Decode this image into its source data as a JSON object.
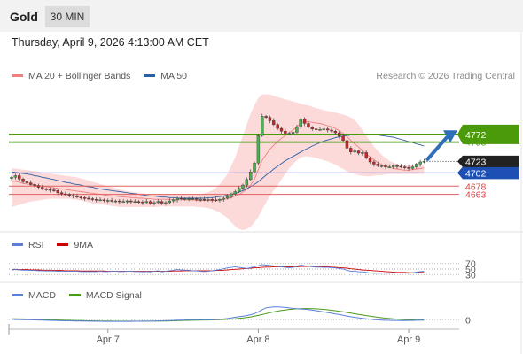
{
  "header": {
    "symbol": "Gold",
    "timeframe": "30 MIN"
  },
  "datetime": "Thursday, April 9, 2026 4:13:00 AM CET",
  "copyright": "Research © 2026 Trading Central",
  "legend": {
    "main": [
      {
        "label": "MA 20 + Bollinger Bands",
        "color": "#f08080"
      },
      {
        "label": "MA 50",
        "color": "#2e5fa3"
      }
    ],
    "rsi": [
      {
        "label": "RSI",
        "color": "#5b7fd8"
      },
      {
        "label": "9MA",
        "color": "#cc0000"
      }
    ],
    "macd": [
      {
        "label": "MACD",
        "color": "#5b7fd8"
      },
      {
        "label": "MACD Signal",
        "color": "#4a9a1a"
      }
    ]
  },
  "colors": {
    "up": "#4caf50",
    "down": "#c62828",
    "resistance": "#4a9a0a",
    "support_blue": "#1e50b4",
    "support_red": "#e06060",
    "band_fill": "#fbd3d3",
    "last_price_bg": "#222222",
    "arrow": "#2e6fb8"
  },
  "chart_data": [
    {
      "type": "candlestick",
      "ylim": [
        4598,
        4862
      ],
      "x_labels": [
        "Apr 7",
        "Apr 8",
        "Apr 9"
      ],
      "levels": [
        {
          "value": 4772,
          "label": "4772",
          "kind": "resistance"
        },
        {
          "value": 4758,
          "label": "4758",
          "kind": "resistance"
        },
        {
          "value": 4702,
          "label": "4702",
          "kind": "support_blue"
        },
        {
          "value": 4678,
          "label": "4678",
          "kind": "support_red"
        },
        {
          "value": 4663,
          "label": "4663",
          "kind": "support_red"
        }
      ],
      "last_price": {
        "value": 4723,
        "label": "4723"
      },
      "forecast_arrow": {
        "from": 4727,
        "to": 4773
      },
      "close": [
        4694,
        4697,
        4691,
        4686,
        4684,
        4681,
        4679,
        4676,
        4673,
        4672,
        4671,
        4670,
        4666,
        4664,
        4663,
        4661,
        4660,
        4658,
        4657,
        4656,
        4655,
        4654,
        4653,
        4653,
        4652,
        4652,
        4651,
        4651,
        4650,
        4650,
        4651,
        4650,
        4650,
        4649,
        4648,
        4650,
        4647,
        4648,
        4650,
        4647,
        4648,
        4651,
        4653,
        4656,
        4655,
        4655,
        4655,
        4655,
        4654,
        4654,
        4653,
        4654,
        4653,
        4652,
        4654,
        4656,
        4659,
        4664,
        4668,
        4674,
        4680,
        4690,
        4704,
        4720,
        4770,
        4805,
        4803,
        4797,
        4790,
        4783,
        4778,
        4774,
        4774,
        4776,
        4785,
        4800,
        4792,
        4785,
        4782,
        4781,
        4781,
        4782,
        4780,
        4778,
        4775,
        4769,
        4761,
        4747,
        4740,
        4742,
        4738,
        4739,
        4729,
        4722,
        4718,
        4715,
        4715,
        4713,
        4713,
        4715,
        4714,
        4713,
        4712,
        4710,
        4713,
        4718,
        4722,
        4723
      ],
      "ma20": [
        4686,
        4687,
        4685,
        4683,
        4682,
        4681,
        4680,
        4679,
        4678,
        4677,
        4676,
        4675,
        4674,
        4673,
        4672,
        4671,
        4670,
        4669,
        4668,
        4667,
        4666,
        4665,
        4664,
        4663,
        4662,
        4661,
        4660,
        4660,
        4659,
        4658,
        4658,
        4657,
        4657,
        4656,
        4656,
        4655,
        4655,
        4654,
        4654,
        4654,
        4654,
        4654,
        4653,
        4653,
        4653,
        4653,
        4653,
        4653,
        4652,
        4652,
        4652,
        4652,
        4652,
        4652,
        4653,
        4654,
        4655,
        4657,
        4660,
        4663,
        4667,
        4672,
        4680,
        4690,
        4708,
        4725,
        4735,
        4745,
        4752,
        4759,
        4765,
        4770,
        4775,
        4780,
        4786,
        4793,
        4795,
        4795,
        4794,
        4793,
        4792,
        4790,
        4788,
        4786,
        4783,
        4779,
        4774,
        4768,
        4761,
        4755,
        4749,
        4743,
        4737,
        4731,
        4726,
        4721,
        4717,
        4714,
        4712,
        4710,
        4709,
        4708,
        4707,
        4707,
        4708,
        4709,
        4710,
        4711
      ],
      "ma50": [
        4704,
        4703,
        4702,
        4701,
        4700,
        4699,
        4697,
        4696,
        4694,
        4693,
        4691,
        4690,
        4688,
        4687,
        4685,
        4684,
        4682,
        4681,
        4680,
        4678,
        4677,
        4676,
        4674,
        4673,
        4672,
        4671,
        4670,
        4669,
        4668,
        4667,
        4666,
        4665,
        4664,
        4663,
        4662,
        4661,
        4660,
        4660,
        4659,
        4658,
        4658,
        4657,
        4657,
        4656,
        4656,
        4656,
        4656,
        4656,
        4656,
        4656,
        4656,
        4657,
        4657,
        4658,
        4659,
        4660,
        4662,
        4663,
        4665,
        4667,
        4670,
        4673,
        4677,
        4681,
        4686,
        4692,
        4698,
        4703,
        4709,
        4714,
        4719,
        4724,
        4728,
        4732,
        4736,
        4740,
        4744,
        4747,
        4751,
        4754,
        4757,
        4760,
        4762,
        4764,
        4766,
        4768,
        4769,
        4770,
        4771,
        4771,
        4772,
        4772,
        4772,
        4772,
        4771,
        4771,
        4770,
        4769,
        4768,
        4767,
        4765,
        4763,
        4761,
        4759,
        4757,
        4755,
        4753,
        4751
      ],
      "bb_upper": [
        4710,
        4710,
        4709,
        4708,
        4707,
        4706,
        4705,
        4704,
        4703,
        4702,
        4701,
        4700,
        4699,
        4698,
        4697,
        4696,
        4695,
        4694,
        4692,
        4690,
        4688,
        4686,
        4684,
        4682,
        4680,
        4678,
        4676,
        4674,
        4672,
        4670,
        4669,
        4668,
        4667,
        4666,
        4665,
        4664,
        4664,
        4663,
        4663,
        4663,
        4663,
        4663,
        4663,
        4663,
        4663,
        4663,
        4663,
        4663,
        4663,
        4664,
        4665,
        4667,
        4670,
        4675,
        4681,
        4690,
        4700,
        4715,
        4730,
        4750,
        4770,
        4790,
        4810,
        4825,
        4838,
        4845,
        4845,
        4845,
        4842,
        4840,
        4838,
        4836,
        4834,
        4832,
        4830,
        4828,
        4826,
        4825,
        4822,
        4820,
        4818,
        4816,
        4815,
        4813,
        4812,
        4810,
        4808,
        4806,
        4803,
        4798,
        4790,
        4780,
        4770,
        4760,
        4750,
        4742,
        4735,
        4729,
        4724,
        4721,
        4718,
        4716,
        4716,
        4716,
        4716,
        4716,
        4716,
        4716
      ],
      "bb_lower": [
        4640,
        4642,
        4644,
        4646,
        4648,
        4650,
        4651,
        4652,
        4653,
        4654,
        4655,
        4655,
        4655,
        4655,
        4655,
        4655,
        4654,
        4653,
        4652,
        4650,
        4648,
        4647,
        4646,
        4645,
        4644,
        4643,
        4642,
        4641,
        4640,
        4640,
        4640,
        4640,
        4640,
        4640,
        4640,
        4640,
        4640,
        4640,
        4640,
        4641,
        4641,
        4641,
        4641,
        4641,
        4641,
        4641,
        4641,
        4641,
        4640,
        4640,
        4639,
        4638,
        4636,
        4633,
        4630,
        4625,
        4620,
        4612,
        4605,
        4600,
        4598,
        4600,
        4604,
        4612,
        4622,
        4635,
        4648,
        4660,
        4670,
        4680,
        4690,
        4700,
        4710,
        4718,
        4725,
        4730,
        4732,
        4732,
        4731,
        4729,
        4727,
        4725,
        4723,
        4720,
        4717,
        4713,
        4709,
        4705,
        4702,
        4700,
        4698,
        4697,
        4696,
        4696,
        4697,
        4698,
        4698,
        4699,
        4700,
        4700,
        4700,
        4700,
        4700,
        4700,
        4700,
        4700,
        4700,
        4700
      ]
    },
    {
      "type": "line",
      "ylim": [
        25,
        75
      ],
      "axis_labels": [
        "70",
        "50",
        "30"
      ],
      "series": [
        {
          "name": "RSI",
          "values": [
            47,
            48,
            47,
            46,
            46,
            45,
            45,
            44,
            44,
            43,
            43,
            43,
            42,
            42,
            42,
            42,
            42,
            42,
            41,
            41,
            41,
            41,
            41,
            42,
            41,
            41,
            42,
            42,
            41,
            41,
            42,
            42,
            41,
            41,
            40,
            41,
            40,
            42,
            44,
            40,
            42,
            44,
            46,
            48,
            47,
            46,
            46,
            44,
            43,
            42,
            41,
            42,
            44,
            46,
            48,
            51,
            54,
            56,
            58,
            56,
            54,
            52,
            55,
            58,
            62,
            66,
            64,
            63,
            61,
            60,
            58,
            56,
            55,
            56,
            60,
            64,
            62,
            60,
            58,
            57,
            57,
            56,
            56,
            55,
            54,
            52,
            50,
            46,
            42,
            43,
            40,
            40,
            38,
            36,
            35,
            35,
            35,
            36,
            35,
            37,
            36,
            36,
            36,
            35,
            37,
            39,
            41,
            42
          ]
        },
        {
          "name": "9MA",
          "values": [
            49,
            49,
            48,
            48,
            48,
            47,
            47,
            47,
            46,
            46,
            46,
            45,
            45,
            45,
            44,
            44,
            44,
            44,
            43,
            43,
            43,
            43,
            43,
            43,
            43,
            42,
            42,
            42,
            42,
            42,
            42,
            42,
            42,
            42,
            42,
            42,
            42,
            42,
            42,
            42,
            42,
            42,
            43,
            43,
            43,
            44,
            44,
            44,
            44,
            44,
            44,
            44,
            44,
            45,
            45,
            46,
            47,
            48,
            49,
            50,
            51,
            52,
            53,
            54,
            55,
            56,
            57,
            57,
            58,
            58,
            58,
            58,
            58,
            58,
            58,
            59,
            59,
            59,
            59,
            59,
            58,
            58,
            58,
            57,
            56,
            55,
            54,
            53,
            51,
            50,
            48,
            47,
            46,
            45,
            44,
            43,
            42,
            41,
            40,
            39,
            38,
            38,
            38,
            37,
            37,
            37,
            38,
            38
          ]
        }
      ]
    },
    {
      "type": "line",
      "ylim": [
        -10,
        33
      ],
      "axis_labels": [
        "0"
      ],
      "series": [
        {
          "name": "MACD",
          "values": [
            1.0,
            0.8,
            0.6,
            0.5,
            0.3,
            0.2,
            0.0,
            -0.2,
            -0.4,
            -0.6,
            -0.8,
            -1.0,
            -1.2,
            -1.4,
            -1.5,
            -1.6,
            -1.7,
            -1.8,
            -1.9,
            -2.0,
            -2.1,
            -2.2,
            -2.3,
            -2.3,
            -2.4,
            -2.4,
            -2.4,
            -2.5,
            -2.5,
            -2.5,
            -2.4,
            -2.4,
            -2.3,
            -2.3,
            -2.2,
            -2.2,
            -2.1,
            -2.0,
            -1.8,
            -1.6,
            -1.4,
            -1.2,
            -1.0,
            -0.6,
            -0.3,
            -0.1,
            0.1,
            0.2,
            0.3,
            0.3,
            0.2,
            0.2,
            0.4,
            0.6,
            1.0,
            1.6,
            2.5,
            3.5,
            4.6,
            5.5,
            6.5,
            7.5,
            9,
            11,
            14,
            18,
            21,
            22,
            22.5,
            22.6,
            22.3,
            21.6,
            20.8,
            20,
            19.4,
            19,
            18.5,
            17.9,
            17,
            16.1,
            15.1,
            14,
            12.9,
            11.7,
            10.5,
            9.3,
            8,
            6.8,
            5.5,
            4.5,
            3.6,
            2.8,
            2,
            1.3,
            0.6,
            0.1,
            -0.3,
            -0.6,
            -0.8,
            -0.9,
            -1.0,
            -1.1,
            -1.1,
            -1.0,
            -0.9,
            -0.7,
            -0.5,
            -0.3
          ]
        },
        {
          "name": "MACD Signal",
          "values": [
            2.0,
            1.9,
            1.7,
            1.6,
            1.4,
            1.2,
            1.0,
            0.8,
            0.6,
            0.4,
            0.2,
            0.0,
            -0.2,
            -0.4,
            -0.6,
            -0.8,
            -1.0,
            -1.1,
            -1.3,
            -1.4,
            -1.5,
            -1.6,
            -1.7,
            -1.8,
            -1.9,
            -2.0,
            -2.0,
            -2.1,
            -2.1,
            -2.2,
            -2.2,
            -2.2,
            -2.2,
            -2.2,
            -2.2,
            -2.2,
            -2.1,
            -2.1,
            -2.0,
            -1.9,
            -1.8,
            -1.7,
            -1.6,
            -1.4,
            -1.2,
            -1.0,
            -0.8,
            -0.6,
            -0.4,
            -0.3,
            -0.2,
            -0.1,
            0.0,
            0.2,
            0.4,
            0.7,
            1.0,
            1.5,
            2.0,
            2.7,
            3.4,
            4.2,
            5.2,
            6.4,
            7.8,
            9.4,
            11,
            12.6,
            14,
            15.3,
            16.4,
            17.4,
            18.2,
            18.9,
            19.4,
            19.7,
            19.8,
            19.8,
            19.6,
            19.3,
            18.9,
            18.4,
            17.7,
            16.9,
            16.1,
            15.1,
            14.1,
            13.1,
            12,
            10.8,
            9.7,
            8.6,
            7.5,
            6.5,
            5.5,
            4.6,
            3.8,
            3.0,
            2.4,
            1.8,
            1.3,
            0.9,
            0.5,
            0.2,
            0.0,
            -0.1,
            -0.2,
            -0.2
          ]
        }
      ]
    }
  ]
}
